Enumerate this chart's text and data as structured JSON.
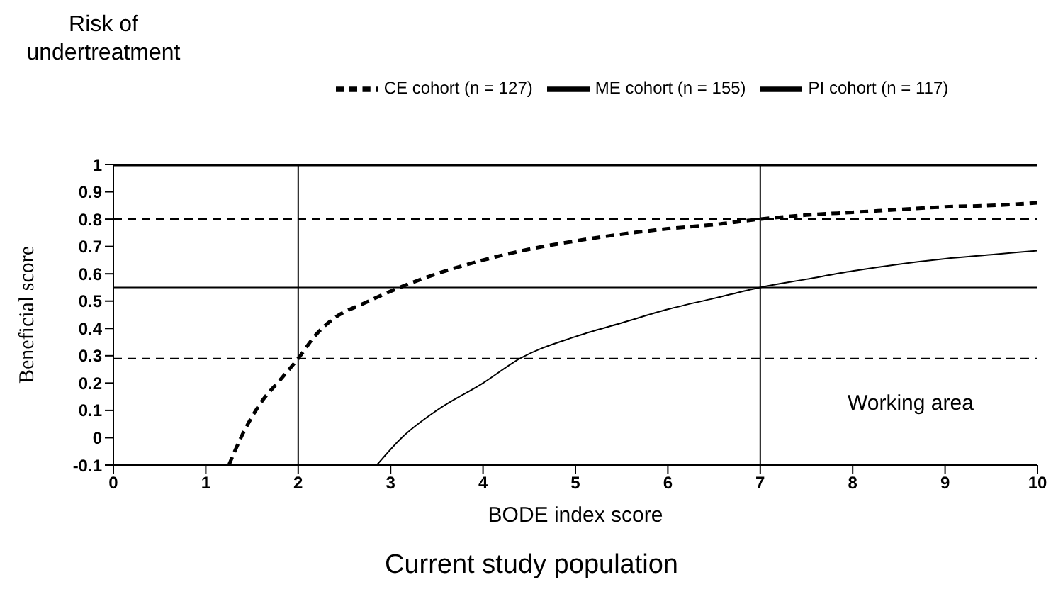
{
  "chart_data": {
    "type": "line",
    "xlabel": "BODE index score",
    "ylabel": "Beneficial score",
    "annotations": [
      "Risk of undertreatment",
      "Working area",
      "Current study population"
    ],
    "series": [
      {
        "name": "PI cohort (n = 117)",
        "color": "#000000",
        "line_style": "solid",
        "x": [
          0,
          10
        ],
        "values": [
          1,
          1
        ]
      },
      {
        "name": "CE cohort (n = 127)",
        "color": "#000000",
        "line_style": "dashed",
        "x": [
          1.25,
          1.38,
          1.6,
          1.8,
          2,
          2.2,
          2.4,
          2.7,
          3.1,
          3.5,
          4,
          4.5,
          5,
          5.5,
          6,
          6.5,
          7,
          7.5,
          8,
          8.5,
          9,
          9.5,
          10
        ],
        "values": [
          -0.1,
          0,
          0.13,
          0.21,
          0.29,
          0.38,
          0.44,
          0.49,
          0.55,
          0.6,
          0.65,
          0.69,
          0.72,
          0.745,
          0.765,
          0.78,
          0.8,
          0.815,
          0.825,
          0.835,
          0.845,
          0.85,
          0.86
        ]
      },
      {
        "name": "ME cohort (n = 155)",
        "color": "#000000",
        "line_style": "solid",
        "x": [
          2.85,
          3.12,
          3.5,
          4,
          4.4,
          5,
          5.5,
          6,
          6.5,
          7,
          7.5,
          8,
          8.5,
          9,
          9.5,
          10
        ],
        "values": [
          -0.1,
          0,
          0.1,
          0.2,
          0.29,
          0.37,
          0.42,
          0.47,
          0.51,
          0.55,
          0.58,
          0.61,
          0.635,
          0.655,
          0.67,
          0.685
        ]
      }
    ],
    "xlim": [
      0,
      10
    ],
    "xticks": [
      0,
      1,
      2,
      3,
      4,
      5,
      6,
      7,
      8,
      9,
      10
    ],
    "ylim": [
      -0.1,
      1
    ],
    "yticks": [
      -0.1,
      0,
      0.1,
      0.2,
      0.3,
      0.4,
      0.5,
      0.6,
      0.7,
      0.8,
      0.9,
      1
    ],
    "ref_lines": [
      {
        "axis": "y",
        "value": 0.8,
        "color": "#000000",
        "line_style": "dashed"
      },
      {
        "axis": "y",
        "value": 0.29,
        "color": "#000000",
        "line_style": "dashed"
      },
      {
        "axis": "y",
        "value": 0.55,
        "color": "#000000",
        "line_style": "solid"
      },
      {
        "axis": "x",
        "value": 2,
        "color": "#000000",
        "line_style": "solid"
      },
      {
        "axis": "x",
        "value": 7,
        "color": "#000000",
        "line_style": "solid"
      }
    ],
    "grid": false,
    "legend": "top",
    "marker": "none"
  }
}
